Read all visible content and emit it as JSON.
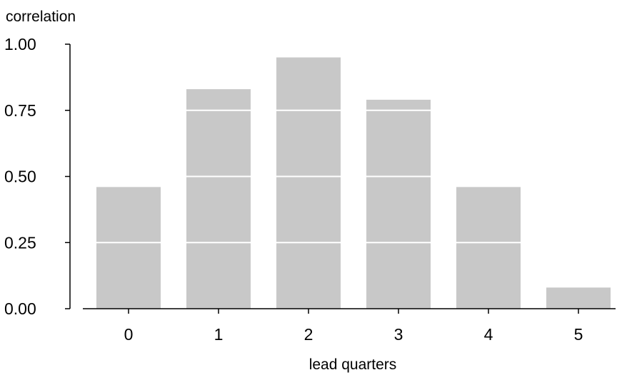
{
  "chart_data": {
    "type": "bar",
    "title": "",
    "xlabel": "lead quarters",
    "ylabel": "correlation",
    "categories": [
      "0",
      "1",
      "2",
      "3",
      "4",
      "5"
    ],
    "values": [
      0.46,
      0.83,
      0.95,
      0.79,
      0.46,
      0.08
    ],
    "ylim": [
      0,
      1.0
    ],
    "yticks": [
      "0.00",
      "0.25",
      "0.50",
      "0.75",
      "1.00"
    ],
    "grid": "horizontal, white, drawn over bars",
    "legend": "none",
    "colors": {
      "bar": "#c8c8c8",
      "grid": "#ffffff",
      "axis": "#000000"
    }
  }
}
